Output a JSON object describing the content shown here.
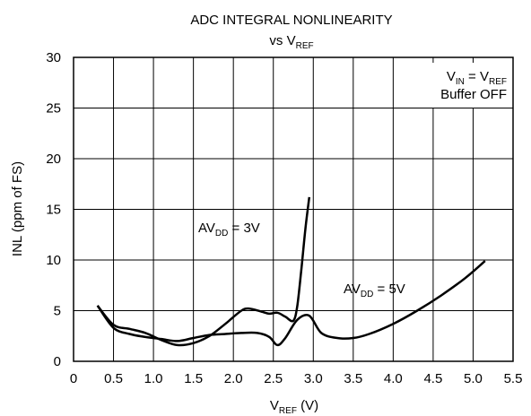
{
  "chart_data": {
    "type": "line",
    "title": {
      "line1": "ADC INTEGRAL NONLINEARITY",
      "line2_prefix": "vs V",
      "line2_sub": "REF"
    },
    "xlabel": {
      "main": "V",
      "sub": "REF",
      "suffix": " (V)"
    },
    "ylabel": "INL (ppm of FS)",
    "xlim": [
      0,
      5.5
    ],
    "ylim": [
      0,
      30
    ],
    "x_ticks": [
      "0",
      "0.5",
      "1.0",
      "1.5",
      "2.0",
      "2.5",
      "3.0",
      "3.5",
      "4.0",
      "4.5",
      "5.0",
      "5.5"
    ],
    "y_ticks": [
      "0",
      "5",
      "10",
      "15",
      "20",
      "25",
      "30"
    ],
    "grid": true,
    "annotation": {
      "line1_a": "V",
      "line1_a_sub": "IN",
      "line1_mid": " = V",
      "line1_b_sub": "REF",
      "line2": "Buffer OFF"
    },
    "series": [
      {
        "name_main": "AV",
        "name_sub": "DD",
        "name_suffix": " = 3V",
        "points": [
          [
            0.3,
            5.5
          ],
          [
            0.5,
            3.6
          ],
          [
            0.7,
            3.2
          ],
          [
            0.9,
            2.8
          ],
          [
            1.1,
            2.1
          ],
          [
            1.3,
            1.6
          ],
          [
            1.5,
            1.8
          ],
          [
            1.7,
            2.5
          ],
          [
            1.9,
            3.7
          ],
          [
            2.1,
            5.0
          ],
          [
            2.2,
            5.2
          ],
          [
            2.35,
            4.9
          ],
          [
            2.45,
            4.7
          ],
          [
            2.55,
            4.8
          ],
          [
            2.65,
            4.4
          ],
          [
            2.75,
            4.0
          ],
          [
            2.8,
            5.5
          ],
          [
            2.85,
            9.0
          ],
          [
            2.9,
            13.0
          ],
          [
            2.95,
            16.2
          ]
        ]
      },
      {
        "name_main": "AV",
        "name_sub": "DD",
        "name_suffix": " = 5V",
        "points": [
          [
            0.3,
            5.5
          ],
          [
            0.5,
            3.3
          ],
          [
            0.7,
            2.7
          ],
          [
            0.9,
            2.4
          ],
          [
            1.1,
            2.2
          ],
          [
            1.3,
            2.0
          ],
          [
            1.5,
            2.3
          ],
          [
            1.7,
            2.6
          ],
          [
            1.9,
            2.7
          ],
          [
            2.1,
            2.8
          ],
          [
            2.3,
            2.8
          ],
          [
            2.45,
            2.4
          ],
          [
            2.55,
            1.6
          ],
          [
            2.65,
            2.3
          ],
          [
            2.8,
            4.1
          ],
          [
            2.95,
            4.5
          ],
          [
            3.1,
            2.8
          ],
          [
            3.3,
            2.3
          ],
          [
            3.5,
            2.3
          ],
          [
            3.7,
            2.7
          ],
          [
            4.0,
            3.7
          ],
          [
            4.3,
            5.0
          ],
          [
            4.6,
            6.5
          ],
          [
            4.9,
            8.2
          ],
          [
            5.15,
            9.9
          ]
        ]
      }
    ]
  }
}
